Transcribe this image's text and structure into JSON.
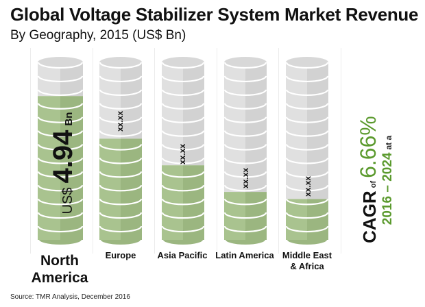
{
  "chart_data": {
    "type": "bar",
    "style": "stacked-cylinder",
    "title": "Global Voltage Stabilizer System Market Revenue",
    "subtitle": "By Geography, 2015 (US$ Bn)",
    "categories": [
      "North America",
      "Europe",
      "Asia Pacific",
      "Latin America",
      "Middle East & Africa"
    ],
    "values": [
      4.94,
      null,
      null,
      null,
      null
    ],
    "value_labels": [
      "US$ 4.94 Bn",
      "xx.xx",
      "xx.xx",
      "xx.xx",
      "xx.xx"
    ],
    "fill_fraction_estimate": [
      0.81,
      0.57,
      0.42,
      0.27,
      0.23
    ],
    "xlabel": "",
    "ylabel": "",
    "grid": false,
    "annotation": "2016 – 2024 at a CAGR of 6.66%",
    "source": "Source: TMR Analysis, December 2016"
  },
  "header": {
    "title": "Global Voltage Stabilizer System Market Revenue",
    "subtitle": "By Geography, 2015 (US$ Bn)"
  },
  "bars": [
    {
      "label_line1": "North",
      "label_line2": "America",
      "prefix": "US$",
      "value": "4.94",
      "unit": "Bn"
    },
    {
      "label_line1": "Europe",
      "label_line2": "",
      "value": "xx.xx"
    },
    {
      "label_line1": "Asia Pacific",
      "label_line2": "",
      "value": "xx.xx"
    },
    {
      "label_line1": "Latin America",
      "label_line2": "",
      "value": "xx.xx"
    },
    {
      "label_line1": "Middle East",
      "label_line2": "& Africa",
      "value": "xx.xx"
    }
  ],
  "cagr": {
    "period": "2016 – 2024",
    "at_a": "at a",
    "cagr_label": "CAGR",
    "of": "of",
    "value": "6.66%"
  },
  "colors": {
    "green": "#a9c38f",
    "green_dark": "#9bb680",
    "grey": "#e0e0e0",
    "grey_dark": "#d2d2d2",
    "accent_text": "#5b9a2e"
  },
  "footer": {
    "source": "Source: TMR Analysis, December 2016"
  }
}
